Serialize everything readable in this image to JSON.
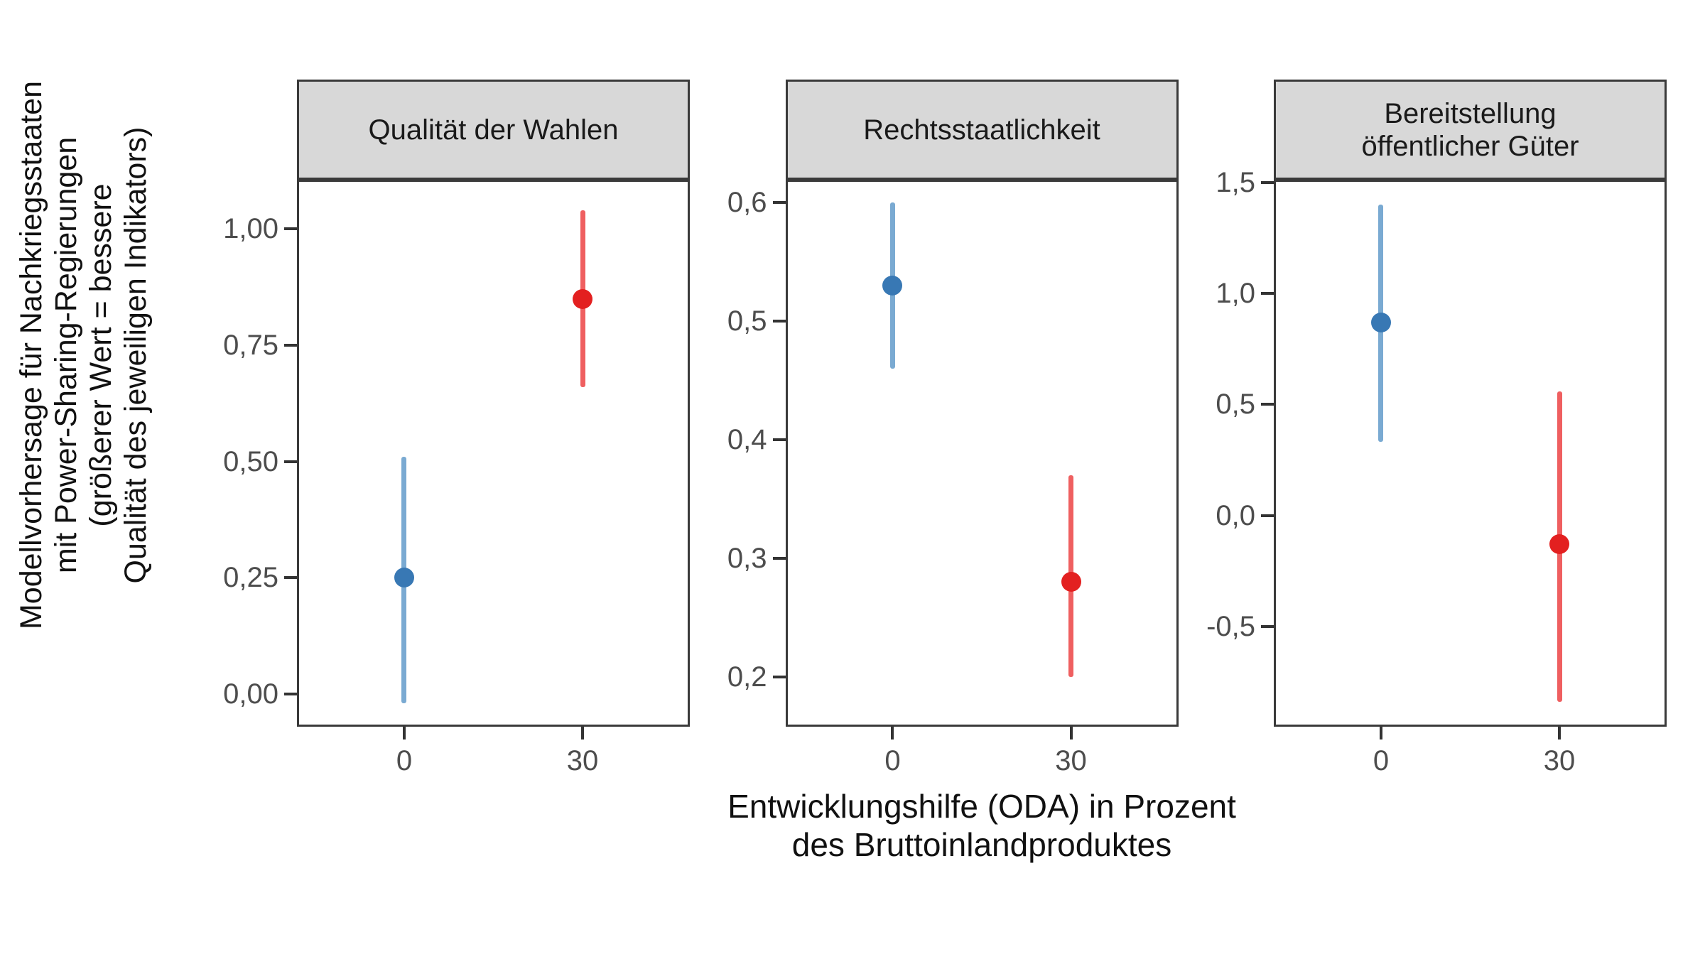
{
  "figure": {
    "y_axis_title_lines": [
      "Modellvorhersage für Nachkriegsstaaten",
      "mit Power-Sharing-Regierungen",
      "(größerer Wert = bessere",
      "Qualität des jeweiligen Indikators)"
    ],
    "x_axis_title_lines": [
      "Entwicklungshilfe (ODA) in Prozent",
      "des Bruttoinlandproduktes"
    ]
  },
  "colors": {
    "blue_point": "#3878b4",
    "blue_line": "#7aaad2",
    "red_point": "#e32020",
    "red_line": "#ef5f60",
    "header_bg": "#d8d8d8",
    "panel_border": "#3a3a3a",
    "tick_text": "#4d4d4d"
  },
  "chart_data": [
    {
      "type": "pointrange",
      "title_lines": [
        "Qualität der Wahlen"
      ],
      "x_categories": [
        "0",
        "30"
      ],
      "ylim": [
        -0.07,
        1.106
      ],
      "y_ticks": [
        {
          "label": "1,00",
          "value": 1.0
        },
        {
          "label": "0,75",
          "value": 0.75
        },
        {
          "label": "0,50",
          "value": 0.5
        },
        {
          "label": "0,25",
          "value": 0.25
        },
        {
          "label": "0,00",
          "value": 0.0
        }
      ],
      "series": [
        {
          "x": "0",
          "color": "blue",
          "y": 0.25,
          "ymin": -0.02,
          "ymax": 0.51
        },
        {
          "x": "30",
          "color": "red",
          "y": 0.85,
          "ymin": 0.66,
          "ymax": 1.04
        }
      ]
    },
    {
      "type": "pointrange",
      "title_lines": [
        "Rechtsstaatlichkeit"
      ],
      "x_categories": [
        "0",
        "30"
      ],
      "ylim": [
        0.158,
        0.619
      ],
      "y_ticks": [
        {
          "label": "0,6",
          "value": 0.6
        },
        {
          "label": "0,5",
          "value": 0.5
        },
        {
          "label": "0,4",
          "value": 0.4
        },
        {
          "label": "0,3",
          "value": 0.3
        },
        {
          "label": "0,2",
          "value": 0.2
        }
      ],
      "series": [
        {
          "x": "0",
          "color": "blue",
          "y": 0.53,
          "ymin": 0.46,
          "ymax": 0.6
        },
        {
          "x": "30",
          "color": "red",
          "y": 0.28,
          "ymin": 0.2,
          "ymax": 0.37
        }
      ]
    },
    {
      "type": "pointrange",
      "title_lines": [
        "Bereitstellung",
        "öffentlicher Güter"
      ],
      "x_categories": [
        "0",
        "30"
      ],
      "ylim": [
        -0.952,
        1.512
      ],
      "y_ticks": [
        {
          "label": "1,5",
          "value": 1.5
        },
        {
          "label": "1,0",
          "value": 1.0
        },
        {
          "label": "0,5",
          "value": 0.5
        },
        {
          "label": "0,0",
          "value": 0.0
        },
        {
          "label": "-0,5",
          "value": -0.5
        }
      ],
      "series": [
        {
          "x": "0",
          "color": "blue",
          "y": 0.87,
          "ymin": 0.33,
          "ymax": 1.4
        },
        {
          "x": "30",
          "color": "red",
          "y": -0.13,
          "ymin": -0.84,
          "ymax": 0.56
        }
      ]
    }
  ],
  "layout_note": "faceted point-range chart, free y scales"
}
